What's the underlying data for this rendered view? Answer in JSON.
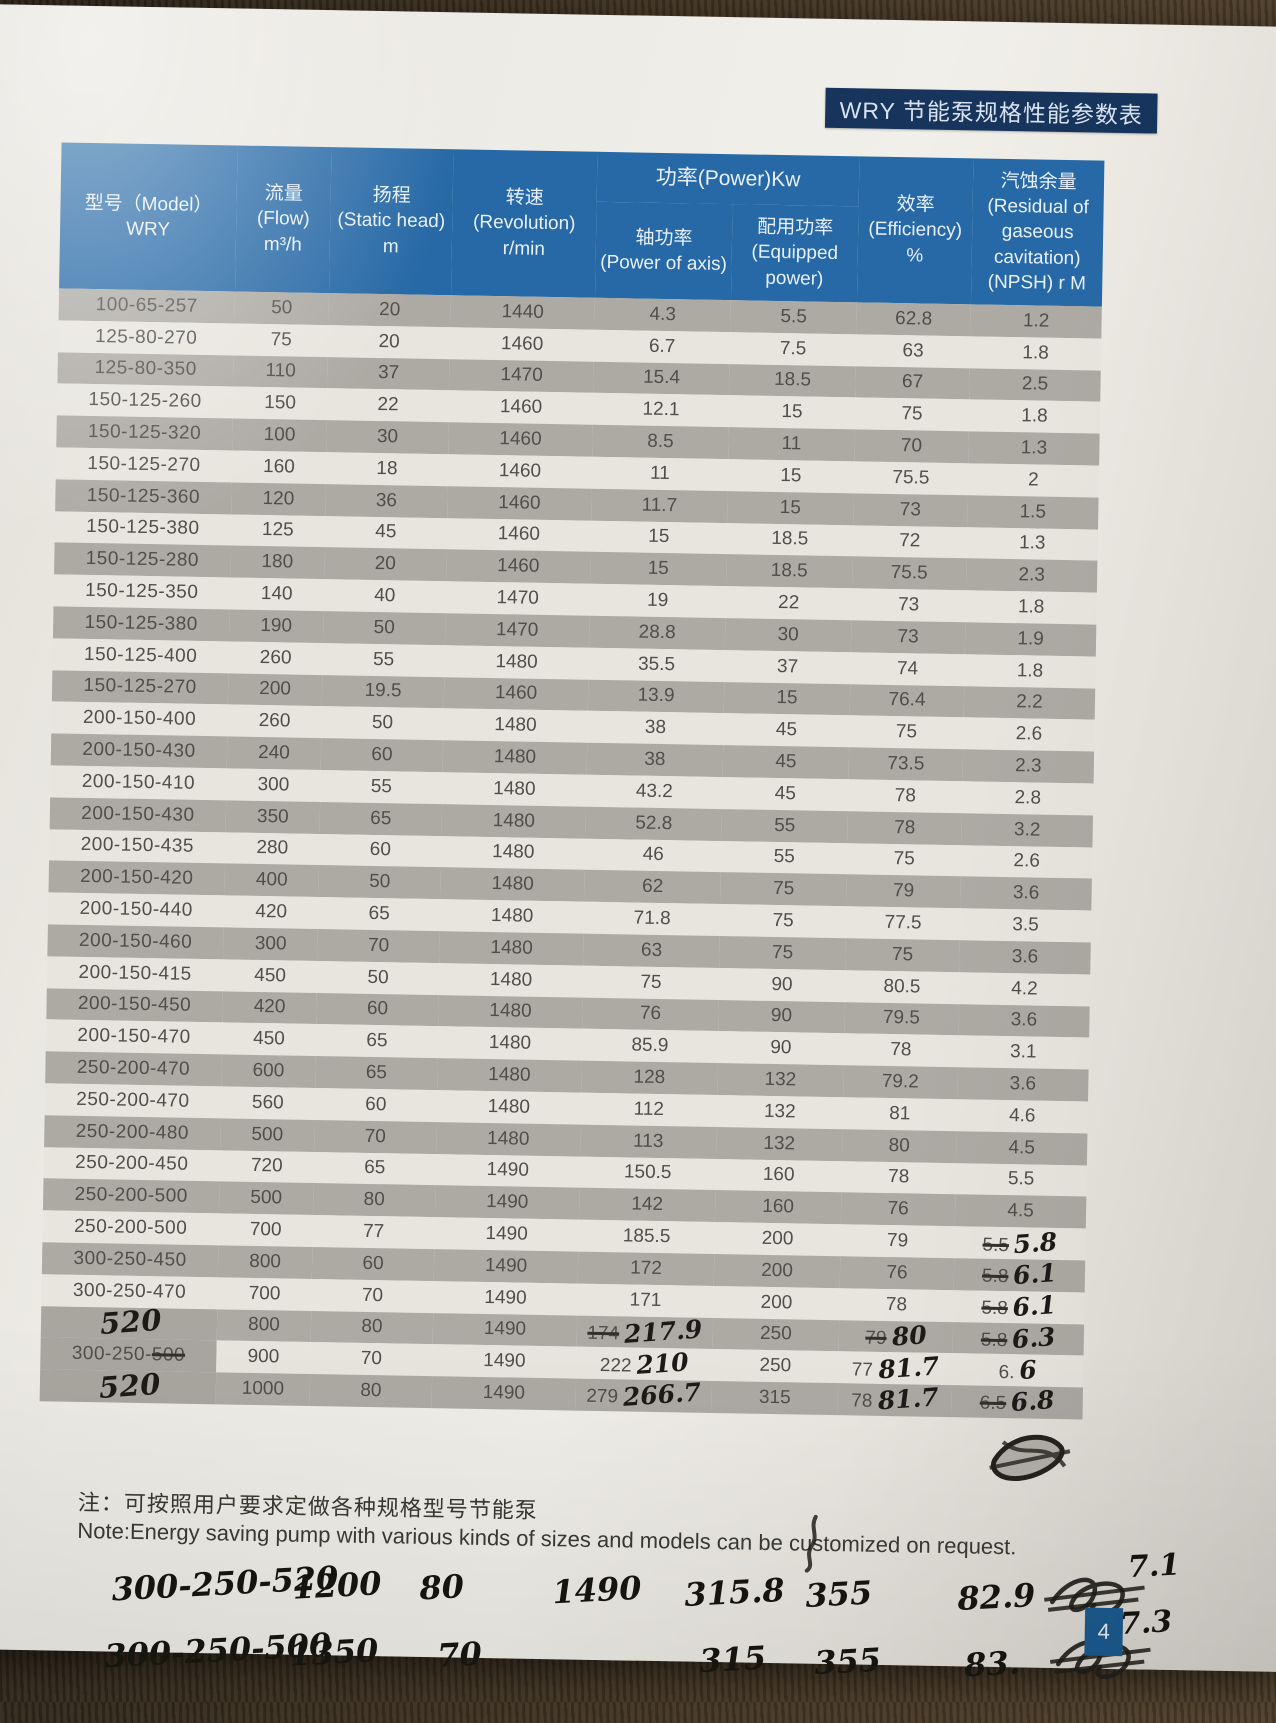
{
  "page": {
    "title": "WRY 节能泵规格性能参数表",
    "page_number": "4",
    "note_cn": "注：可按照用户要求定做各种规格型号节能泵",
    "note_en": "Note:Energy saving pump with various kinds of sizes and models can be customized on request."
  },
  "colors": {
    "header_blue": "#2769a6",
    "title_navy": "#17345d",
    "page_badge_blue": "#1d5d94",
    "row_gray": "#adaaa4",
    "row_light": "#e8e5de"
  },
  "table": {
    "headers": {
      "model": [
        "型号（Model）",
        "WRY"
      ],
      "flow": [
        "流量",
        "(Flow)",
        "m³/h"
      ],
      "head": [
        "扬程",
        "(Static head)",
        "m"
      ],
      "rev": [
        "转速",
        "(Revolution)",
        "r/min"
      ],
      "power_group": "功率(Power)Kw",
      "axis": [
        "轴功率",
        "(Power of axis)"
      ],
      "equipped": [
        "配用功率",
        "(Equipped power)"
      ],
      "eff": [
        "效率",
        "(Efficiency)",
        "%"
      ],
      "npsh": [
        "汽蚀余量",
        "(Residual of",
        "gaseous",
        "cavitation)",
        "(NPSH) r M"
      ]
    },
    "rows": [
      {
        "model": "100-65-257",
        "flow": "50",
        "head": "20",
        "rev": "1440",
        "axis": "4.3",
        "equipped": "5.5",
        "eff": "62.8",
        "npsh": "1.2"
      },
      {
        "model": "125-80-270",
        "flow": "75",
        "head": "20",
        "rev": "1460",
        "axis": "6.7",
        "equipped": "7.5",
        "eff": "63",
        "npsh": "1.8"
      },
      {
        "model": "125-80-350",
        "flow": "110",
        "head": "37",
        "rev": "1470",
        "axis": "15.4",
        "equipped": "18.5",
        "eff": "67",
        "npsh": "2.5"
      },
      {
        "model": "150-125-260",
        "flow": "150",
        "head": "22",
        "rev": "1460",
        "axis": "12.1",
        "equipped": "15",
        "eff": "75",
        "npsh": "1.8"
      },
      {
        "model": "150-125-320",
        "flow": "100",
        "head": "30",
        "rev": "1460",
        "axis": "8.5",
        "equipped": "11",
        "eff": "70",
        "npsh": "1.3"
      },
      {
        "model": "150-125-270",
        "flow": "160",
        "head": "18",
        "rev": "1460",
        "axis": "11",
        "equipped": "15",
        "eff": "75.5",
        "npsh": "2"
      },
      {
        "model": "150-125-360",
        "flow": "120",
        "head": "36",
        "rev": "1460",
        "axis": "11.7",
        "equipped": "15",
        "eff": "73",
        "npsh": "1.5"
      },
      {
        "model": "150-125-380",
        "flow": "125",
        "head": "45",
        "rev": "1460",
        "axis": "15",
        "equipped": "18.5",
        "eff": "72",
        "npsh": "1.3"
      },
      {
        "model": "150-125-280",
        "flow": "180",
        "head": "20",
        "rev": "1460",
        "axis": "15",
        "equipped": "18.5",
        "eff": "75.5",
        "npsh": "2.3"
      },
      {
        "model": "150-125-350",
        "flow": "140",
        "head": "40",
        "rev": "1470",
        "axis": "19",
        "equipped": "22",
        "eff": "73",
        "npsh": "1.8"
      },
      {
        "model": "150-125-380",
        "flow": "190",
        "head": "50",
        "rev": "1470",
        "axis": "28.8",
        "equipped": "30",
        "eff": "73",
        "npsh": "1.9"
      },
      {
        "model": "150-125-400",
        "flow": "260",
        "head": "55",
        "rev": "1480",
        "axis": "35.5",
        "equipped": "37",
        "eff": "74",
        "npsh": "1.8"
      },
      {
        "model": "150-125-270",
        "flow": "200",
        "head": "19.5",
        "rev": "1460",
        "axis": "13.9",
        "equipped": "15",
        "eff": "76.4",
        "npsh": "2.2"
      },
      {
        "model": "200-150-400",
        "flow": "260",
        "head": "50",
        "rev": "1480",
        "axis": "38",
        "equipped": "45",
        "eff": "75",
        "npsh": "2.6"
      },
      {
        "model": "200-150-430",
        "flow": "240",
        "head": "60",
        "rev": "1480",
        "axis": "38",
        "equipped": "45",
        "eff": "73.5",
        "npsh": "2.3"
      },
      {
        "model": "200-150-410",
        "flow": "300",
        "head": "55",
        "rev": "1480",
        "axis": "43.2",
        "equipped": "45",
        "eff": "78",
        "npsh": "2.8"
      },
      {
        "model": "200-150-430",
        "flow": "350",
        "head": "65",
        "rev": "1480",
        "axis": "52.8",
        "equipped": "55",
        "eff": "78",
        "npsh": "3.2"
      },
      {
        "model": "200-150-435",
        "flow": "280",
        "head": "60",
        "rev": "1480",
        "axis": "46",
        "equipped": "55",
        "eff": "75",
        "npsh": "2.6"
      },
      {
        "model": "200-150-420",
        "flow": "400",
        "head": "50",
        "rev": "1480",
        "axis": "62",
        "equipped": "75",
        "eff": "79",
        "npsh": "3.6"
      },
      {
        "model": "200-150-440",
        "flow": "420",
        "head": "65",
        "rev": "1480",
        "axis": "71.8",
        "equipped": "75",
        "eff": "77.5",
        "npsh": "3.5"
      },
      {
        "model": "200-150-460",
        "flow": "300",
        "head": "70",
        "rev": "1480",
        "axis": "63",
        "equipped": "75",
        "eff": "75",
        "npsh": "3.6"
      },
      {
        "model": "200-150-415",
        "flow": "450",
        "head": "50",
        "rev": "1480",
        "axis": "75",
        "equipped": "90",
        "eff": "80.5",
        "npsh": "4.2"
      },
      {
        "model": "200-150-450",
        "flow": "420",
        "head": "60",
        "rev": "1480",
        "axis": "76",
        "equipped": "90",
        "eff": "79.5",
        "npsh": "3.6"
      },
      {
        "model": "200-150-470",
        "flow": "450",
        "head": "65",
        "rev": "1480",
        "axis": "85.9",
        "equipped": "90",
        "eff": "78",
        "npsh": "3.1"
      },
      {
        "model": "250-200-470",
        "flow": "600",
        "head": "65",
        "rev": "1480",
        "axis": "128",
        "equipped": "132",
        "eff": "79.2",
        "npsh": "3.6"
      },
      {
        "model": "250-200-470",
        "flow": "560",
        "head": "60",
        "rev": "1480",
        "axis": "112",
        "equipped": "132",
        "eff": "81",
        "npsh": "4.6"
      },
      {
        "model": "250-200-480",
        "flow": "500",
        "head": "70",
        "rev": "1480",
        "axis": "113",
        "equipped": "132",
        "eff": "80",
        "npsh": "4.5"
      },
      {
        "model": "250-200-450",
        "flow": "720",
        "head": "65",
        "rev": "1490",
        "axis": "150.5",
        "equipped": "160",
        "eff": "78",
        "npsh": "5.5"
      },
      {
        "model": "250-200-500",
        "flow": "500",
        "head": "80",
        "rev": "1490",
        "axis": "142",
        "equipped": "160",
        "eff": "76",
        "npsh": "4.5"
      },
      {
        "model": "250-200-500",
        "flow": "700",
        "head": "77",
        "rev": "1490",
        "axis": "185.5",
        "equipped": "200",
        "eff": "79",
        "npsh": {
          "p": "5.5",
          "strike": true,
          "hw": "5.8"
        }
      },
      {
        "model": "300-250-450",
        "flow": "800",
        "head": "60",
        "rev": "1490",
        "axis": "172",
        "equipped": "200",
        "eff": "76",
        "npsh": {
          "p": "5.8",
          "strike": true,
          "hw": "6.1"
        }
      },
      {
        "model": "300-250-470",
        "flow": "700",
        "head": "70",
        "rev": "1490",
        "axis": "171",
        "equipped": "200",
        "eff": "78",
        "npsh": {
          "p": "5.8",
          "strike": true,
          "hw": "6.1"
        }
      },
      {
        "model": {
          "hw": "520"
        },
        "model_bg": "gray",
        "flow": "800",
        "head": "80",
        "rev": "1490",
        "axis": {
          "p": "174",
          "strike": true,
          "hw": "217.9"
        },
        "equipped": "250",
        "eff": {
          "p": "79",
          "strike": true,
          "hw": "80"
        },
        "npsh": {
          "p": "5.8",
          "strike": true,
          "hw": "6.3"
        }
      },
      {
        "model": {
          "p": "300-250-",
          "pstruck": "500"
        },
        "model_bg": "gray",
        "flow": "900",
        "head": "70",
        "rev": "1490",
        "axis": {
          "p": "222",
          "hw": "210"
        },
        "equipped": "250",
        "eff": {
          "p": "77",
          "hw": "81.7"
        },
        "npsh": {
          "p": "6.",
          "hw": "6"
        }
      },
      {
        "model": {
          "hw": "520"
        },
        "model_bg": "gray",
        "flow": "1000",
        "head": "80",
        "rev": "1490",
        "axis": {
          "p": "279",
          "hw": "266.7"
        },
        "equipped": "315",
        "eff": {
          "p": "78",
          "hw": "81.7"
        },
        "npsh": {
          "p": "6.5",
          "strike": true,
          "hw": "6.8"
        }
      }
    ]
  },
  "handwritten": {
    "rows": [
      {
        "cells": [
          "300-250-520",
          "1200",
          "80",
          "1490",
          "315.8",
          "355",
          "82.9"
        ],
        "npsh": "7.1"
      },
      {
        "cells": [
          "300-250-500",
          "1350",
          "70",
          "",
          "315",
          "355",
          "83."
        ],
        "npsh": "7.3"
      }
    ]
  }
}
